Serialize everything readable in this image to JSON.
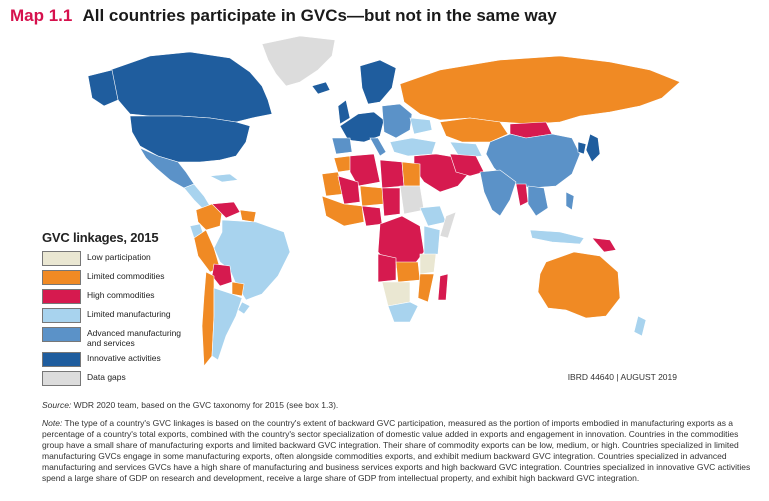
{
  "title": {
    "number": "Map 1.1",
    "text": "All countries participate in GVCs—but not in the same way"
  },
  "legend": {
    "title": "GVC linkages, 2015",
    "items": [
      {
        "label": "Low participation",
        "color": "#eae7d2"
      },
      {
        "label": "Limited commodities",
        "color": "#f08a24"
      },
      {
        "label": "High commodities",
        "color": "#d61a4f"
      },
      {
        "label": "Limited manufacturing",
        "color": "#a8d3ee"
      },
      {
        "label": "Advanced manufacturing and services",
        "color": "#5b92c8"
      },
      {
        "label": "Innovative activities",
        "color": "#1f5d9e"
      },
      {
        "label": "Data gaps",
        "color": "#dcdcdc"
      }
    ]
  },
  "map_id": "IBRD 44640 | AUGUST 2019",
  "source": {
    "label": "Source:",
    "text": "WDR 2020 team, based on the GVC taxonomy for 2015 (see box 1.3)."
  },
  "note": {
    "label": "Note:",
    "text": "The type of a country's GVC linkages is based on the country's extent of backward GVC participation, measured as the portion of imports embodied in manufacturing exports as a percentage of a country's total exports, combined with the country's sector specialization of domestic value added in exports and engagement in innovation. Countries in the commodities group have a small share of manufacturing exports and limited backward GVC integration. Their share of commodity exports can be low, medium, or high. Countries specialized in limited manufacturing GVCs engage in some manufacturing exports, often alongside commodities exports, and exhibit medium backward GVC integration. Countries specialized in advanced manufacturing and services GVCs have a high share of manufacturing and business services exports and high backward GVC integration. Countries specialized in innovative GVC activities spend a large share of GDP on research and development, receive a large share of GDP from intellectual property, and exhibit high backward GVC integration."
  }
}
